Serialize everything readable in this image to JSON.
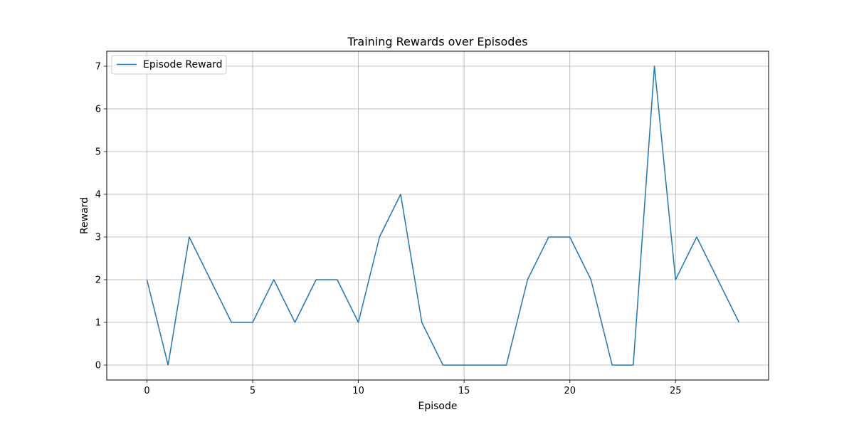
{
  "chart_data": {
    "type": "line",
    "title": "Training Rewards over Episodes",
    "xlabel": "Episode",
    "ylabel": "Reward",
    "xlim": [
      -1.9,
      29.4
    ],
    "ylim": [
      -0.35,
      7.35
    ],
    "xticks": [
      0,
      5,
      10,
      15,
      20,
      25
    ],
    "yticks": [
      0,
      1,
      2,
      3,
      4,
      5,
      6,
      7
    ],
    "grid": true,
    "legend_position": "top-left",
    "series": [
      {
        "name": "Episode Reward",
        "color": "#1f77b4",
        "x": [
          0,
          1,
          2,
          3,
          4,
          5,
          6,
          7,
          8,
          9,
          10,
          11,
          12,
          13,
          14,
          15,
          16,
          17,
          18,
          19,
          20,
          21,
          22,
          23,
          24,
          25,
          26,
          27,
          28
        ],
        "y": [
          2,
          0,
          3,
          2,
          1,
          1,
          2,
          1,
          2,
          2,
          1,
          3,
          4,
          1,
          0,
          0,
          0,
          0,
          2,
          3,
          3,
          2,
          0,
          0,
          7,
          2,
          3,
          2,
          1
        ]
      }
    ]
  }
}
